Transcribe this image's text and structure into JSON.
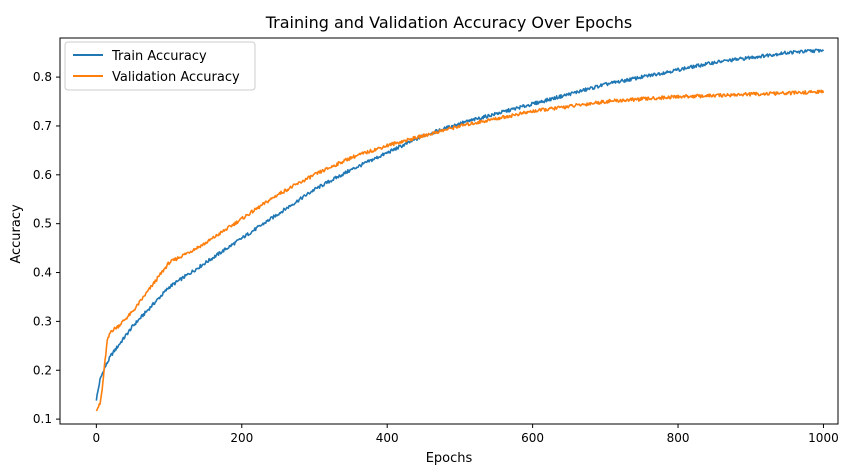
{
  "chart_data": {
    "type": "line",
    "title": "Training and Validation Accuracy Over Epochs",
    "xlabel": "Epochs",
    "ylabel": "Accuracy",
    "xlim": [
      -50,
      1020
    ],
    "ylim": [
      0.09,
      0.88
    ],
    "xticks": [
      0,
      200,
      400,
      600,
      800,
      1000
    ],
    "yticks": [
      0.1,
      0.2,
      0.3,
      0.4,
      0.5,
      0.6,
      0.7,
      0.8
    ],
    "grid": false,
    "legend_position": "top-left",
    "series": [
      {
        "name": "Train Accuracy",
        "color": "#1f77b4",
        "x": [
          0,
          5,
          10,
          20,
          30,
          50,
          75,
          100,
          150,
          200,
          250,
          300,
          350,
          400,
          450,
          500,
          550,
          600,
          650,
          700,
          750,
          800,
          850,
          900,
          950,
          1000
        ],
        "y": [
          0.14,
          0.18,
          0.2,
          0.23,
          0.25,
          0.29,
          0.33,
          0.37,
          0.42,
          0.47,
          0.52,
          0.57,
          0.61,
          0.645,
          0.68,
          0.705,
          0.725,
          0.745,
          0.765,
          0.785,
          0.8,
          0.815,
          0.83,
          0.84,
          0.85,
          0.855
        ]
      },
      {
        "name": "Validation Accuracy",
        "color": "#ff7f0e",
        "x": [
          0,
          5,
          8,
          12,
          15,
          20,
          30,
          50,
          75,
          100,
          150,
          200,
          250,
          300,
          350,
          400,
          450,
          500,
          550,
          600,
          650,
          700,
          750,
          800,
          850,
          900,
          950,
          1000
        ],
        "y": [
          0.12,
          0.13,
          0.16,
          0.22,
          0.26,
          0.28,
          0.29,
          0.32,
          0.37,
          0.42,
          0.46,
          0.51,
          0.56,
          0.6,
          0.635,
          0.66,
          0.68,
          0.7,
          0.715,
          0.73,
          0.74,
          0.75,
          0.755,
          0.76,
          0.762,
          0.765,
          0.767,
          0.77
        ]
      }
    ]
  }
}
